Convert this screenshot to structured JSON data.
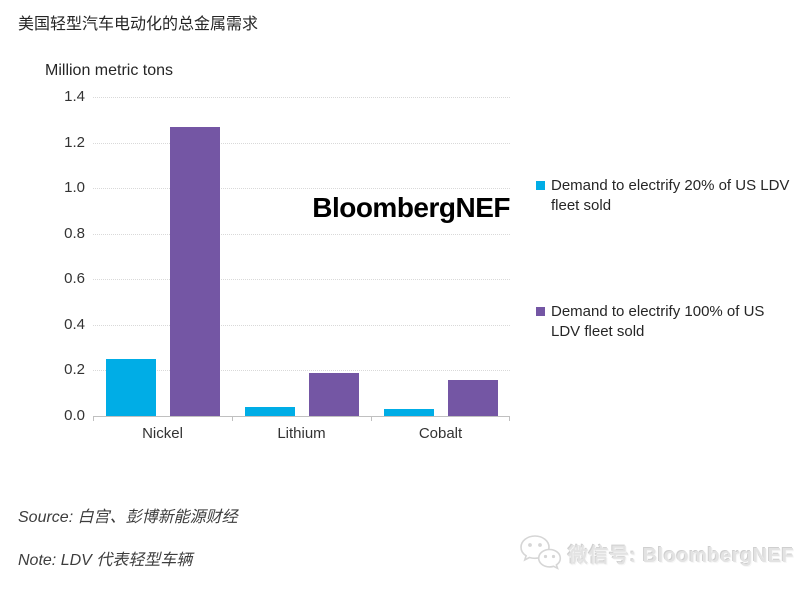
{
  "page": {
    "title": "美国轻型汽车电动化的总金属需求",
    "watermark": "BloombergNEF",
    "source_label": "Source:",
    "source_text": "白宫、彭博新能源财经",
    "note_label": "Note:",
    "note_text": "LDV 代表轻型车辆",
    "wechat_label": "微信号: BloombergNEF"
  },
  "chart_data": {
    "type": "bar",
    "title": "美国轻型汽车电动化的总金属需求",
    "axis_title": "Million metric tons",
    "categories": [
      "Nickel",
      "Lithium",
      "Cobalt"
    ],
    "series": [
      {
        "name": "Demand to electrify 20% of US LDV fleet sold",
        "color": "#00ADE6",
        "values": [
          0.25,
          0.04,
          0.03
        ]
      },
      {
        "name": "Demand to electrify 100% of US LDV fleet sold",
        "color": "#7456A4",
        "values": [
          1.27,
          0.19,
          0.16
        ]
      }
    ],
    "xlabel": "",
    "ylabel": "Million metric tons",
    "ylim": [
      0,
      1.4
    ],
    "ytick_step": 0.2,
    "grid": "horizontal-dotted",
    "legend_position": "right"
  },
  "colors": {
    "series_20pct": "#00ADE6",
    "series_100pct": "#7456A4",
    "gridline": "#d9d9d9",
    "axis_line": "#c0c0c0",
    "text": "#262626"
  }
}
